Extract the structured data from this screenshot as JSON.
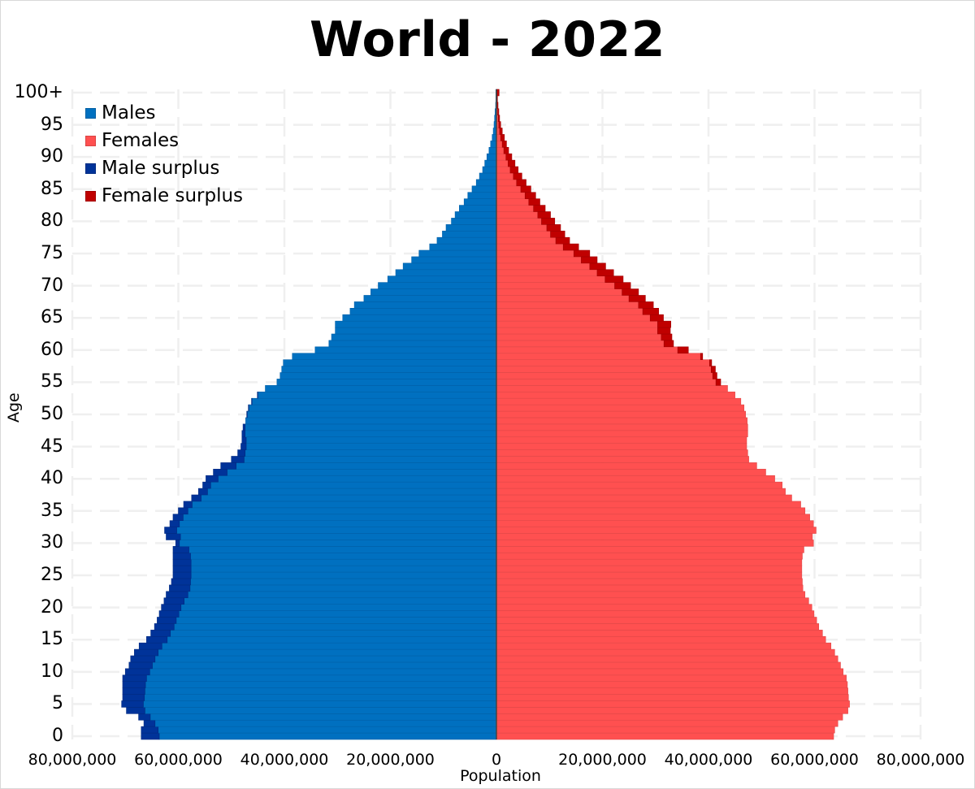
{
  "chart_data": {
    "type": "bar",
    "subtype": "population-pyramid",
    "title": "World - 2022",
    "xlabel": "Population",
    "ylabel": "Age",
    "xlim": [
      -80000000,
      80000000
    ],
    "xtick_labels": [
      "80,000,000",
      "60,000,000",
      "40,000,000",
      "20,000,000",
      "0",
      "20,000,000",
      "40,000,000",
      "60,000,000",
      "80,000,000"
    ],
    "ytick_labels": [
      "0",
      "5",
      "10",
      "15",
      "20",
      "25",
      "30",
      "35",
      "40",
      "45",
      "50",
      "55",
      "60",
      "65",
      "70",
      "75",
      "80",
      "85",
      "90",
      "95",
      "100+"
    ],
    "grid": true,
    "legend_position": "upper-left",
    "legend": [
      "Males",
      "Females",
      "Male surplus",
      "Female surplus"
    ],
    "colors": {
      "males": "#0070c0",
      "females": "#ff5050",
      "male_surplus": "#003399",
      "female_surplus": "#c00000"
    },
    "categories": [
      "0",
      "1",
      "2",
      "3",
      "4",
      "5",
      "6",
      "7",
      "8",
      "9",
      "10",
      "11",
      "12",
      "13",
      "14",
      "15",
      "16",
      "17",
      "18",
      "19",
      "20",
      "21",
      "22",
      "23",
      "24",
      "25",
      "26",
      "27",
      "28",
      "29",
      "30",
      "31",
      "32",
      "33",
      "34",
      "35",
      "36",
      "37",
      "38",
      "39",
      "40",
      "41",
      "42",
      "43",
      "44",
      "45",
      "46",
      "47",
      "48",
      "49",
      "50",
      "51",
      "52",
      "53",
      "54",
      "55",
      "56",
      "57",
      "58",
      "59",
      "60",
      "61",
      "62",
      "63",
      "64",
      "65",
      "66",
      "67",
      "68",
      "69",
      "70",
      "71",
      "72",
      "73",
      "74",
      "75",
      "76",
      "77",
      "78",
      "79",
      "80",
      "81",
      "82",
      "83",
      "84",
      "85",
      "86",
      "87",
      "88",
      "89",
      "90",
      "91",
      "92",
      "93",
      "94",
      "95",
      "96",
      "97",
      "98",
      "99",
      "100+"
    ],
    "unit": "millions",
    "series": [
      {
        "name": "Males",
        "values": [
          67.0,
          67.0,
          66.5,
          67.5,
          69.8,
          70.7,
          70.5,
          70.5,
          70.5,
          70.5,
          70.0,
          69.3,
          69.0,
          68.3,
          67.4,
          66.0,
          65.2,
          64.5,
          64.0,
          63.6,
          63.2,
          62.7,
          62.3,
          61.7,
          61.3,
          61.0,
          61.0,
          61.0,
          61.0,
          61.0,
          60.5,
          62.3,
          62.6,
          61.6,
          61.0,
          60.0,
          59.0,
          57.5,
          56.2,
          55.4,
          54.8,
          53.4,
          52.0,
          50.0,
          48.8,
          48.2,
          48.0,
          48.0,
          47.8,
          47.3,
          47.1,
          46.8,
          46.2,
          45.1,
          43.6,
          41.4,
          40.8,
          40.5,
          40.2,
          38.5,
          34.2,
          31.6,
          31.1,
          30.4,
          30.4,
          29.0,
          27.6,
          26.8,
          25.0,
          23.7,
          22.3,
          20.5,
          19.0,
          17.6,
          16.0,
          14.6,
          12.6,
          11.2,
          10.2,
          9.5,
          8.5,
          7.8,
          7.0,
          6.1,
          5.4,
          4.6,
          3.8,
          3.2,
          2.6,
          2.2,
          1.8,
          1.4,
          1.1,
          0.8,
          0.6,
          0.45,
          0.35,
          0.25,
          0.15,
          0.1,
          0.1
        ]
      },
      {
        "name": "Females",
        "values": [
          63.6,
          63.8,
          64.4,
          65.3,
          66.3,
          66.6,
          66.4,
          66.3,
          66.2,
          66.0,
          65.4,
          64.9,
          64.4,
          63.8,
          63.1,
          62.1,
          61.5,
          60.8,
          60.4,
          59.9,
          59.5,
          58.9,
          58.2,
          57.8,
          57.7,
          57.6,
          57.6,
          57.6,
          57.7,
          58.0,
          59.8,
          59.6,
          60.3,
          59.8,
          59.1,
          58.2,
          57.4,
          55.7,
          54.5,
          53.9,
          52.5,
          50.8,
          49.1,
          47.6,
          47.4,
          47.2,
          47.2,
          47.4,
          47.4,
          47.3,
          47.0,
          46.7,
          46.1,
          45.0,
          43.6,
          42.3,
          41.6,
          41.3,
          40.6,
          38.9,
          36.2,
          33.4,
          33.1,
          32.8,
          32.9,
          31.5,
          30.6,
          29.6,
          28.1,
          26.8,
          25.3,
          23.9,
          22.1,
          20.6,
          19.0,
          17.6,
          15.5,
          13.8,
          12.9,
          12.1,
          11.0,
          10.2,
          9.2,
          8.2,
          7.4,
          6.5,
          5.6,
          4.8,
          4.1,
          3.5,
          2.9,
          2.3,
          1.9,
          1.5,
          1.1,
          0.8,
          0.6,
          0.45,
          0.3,
          0.2,
          0.5
        ]
      }
    ]
  }
}
